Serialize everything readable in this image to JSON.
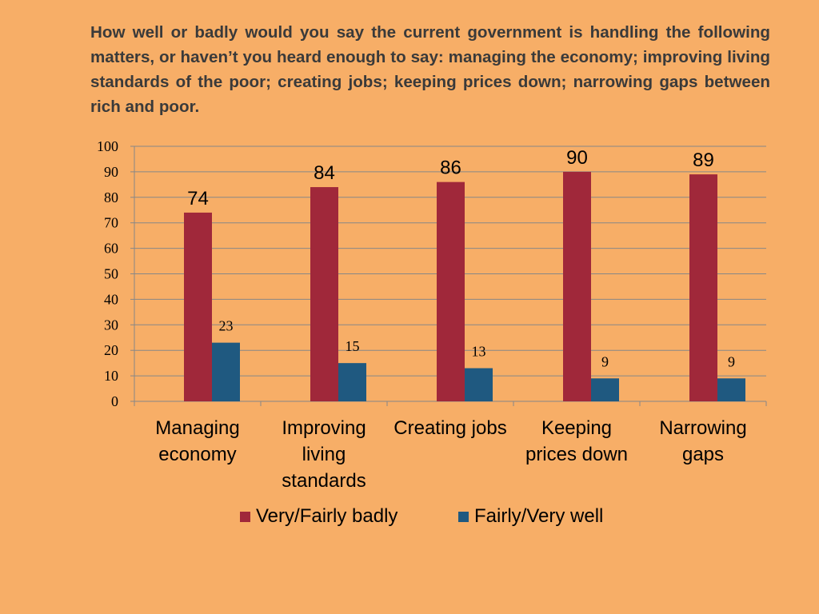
{
  "question": "How well or badly would you say the current government is handling the following matters, or haven’t you heard enough to say: managing the economy; improving living standards of the poor; creating jobs; keeping prices down; narrowing gaps between rich and poor.",
  "colors": {
    "background": "#F7AE67",
    "badly": "#A0283A",
    "well": "#1F5980",
    "gridline": "#878787"
  },
  "chart_data": {
    "type": "bar",
    "title": "",
    "xlabel": "",
    "ylabel": "",
    "ylim": [
      0,
      100
    ],
    "yticks": [
      "0",
      "10",
      "20",
      "30",
      "40",
      "50",
      "60",
      "70",
      "80",
      "90",
      "100"
    ],
    "grid": true,
    "legend_position": "bottom",
    "categories": [
      "Managing economy",
      "Improving living standards",
      "Creating jobs",
      "Keeping prices down",
      "Narrowing gaps"
    ],
    "series": [
      {
        "name": "Very/Fairly badly",
        "values": [
          74,
          84,
          86,
          90,
          89
        ]
      },
      {
        "name": "Fairly/Very well",
        "values": [
          23,
          15,
          13,
          9,
          9
        ]
      }
    ]
  }
}
